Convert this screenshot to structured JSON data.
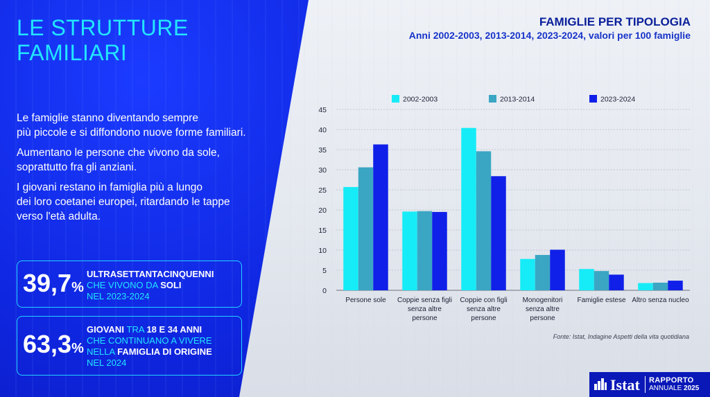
{
  "left": {
    "title_line1": "LE STRUTTURE",
    "title_line2": "FAMILIARI",
    "para1_line1": "Le famiglie stanno diventando sempre",
    "para1_line2": "più piccole e si diffondono nuove forme familiari.",
    "para2_line1": "Aumentano le persone che vivono da sole,",
    "para2_line2": "soprattutto fra gli anziani.",
    "para3_line1": "I giovani restano in famiglia più a lungo",
    "para3_line2": "dei loro coetanei europei, ritardando le tappe",
    "para3_line3": "verso l'età adulta.",
    "stat1": {
      "value": "39,7",
      "unit": "%",
      "l1": "ULTRASETTANTACINQUENNI",
      "l2a": "CHE VIVONO DA ",
      "l2b": "SOLI",
      "l3": "NEL 2023-2024"
    },
    "stat2": {
      "value": "63,3",
      "unit": "%",
      "l1a": "GIOVANI ",
      "l1b": "TRA ",
      "l1c": "18 E 34 ANNI",
      "l2": "CHE CONTINUANO A VIVERE",
      "l3a": "NELLA ",
      "l3b": "FAMIGLIA DI ORIGINE",
      "l4": "NEL 2024"
    }
  },
  "colors": {
    "s1": "#16ecf7",
    "s2": "#3aa6c4",
    "s3": "#1020e8",
    "axis_text": "#1a1f33",
    "grid": "#b8bcc6"
  },
  "chart_data": {
    "type": "bar",
    "title": "FAMIGLIE PER TIPOLOGIA",
    "subtitle": "Anni 2002-2003, 2013-2014, 2023-2024, valori per 100 famiglie",
    "categories": [
      [
        "Persone sole"
      ],
      [
        "Coppie senza figli",
        "senza altre",
        "persone"
      ],
      [
        "Coppie con figli",
        "senza altre",
        "persone"
      ],
      [
        "Monogenitori",
        "senza altre",
        "persone"
      ],
      [
        "Famiglie estese"
      ],
      [
        "Altro senza nucleo"
      ]
    ],
    "series": [
      {
        "name": "2002-2003",
        "values": [
          25.7,
          19.6,
          40.4,
          7.8,
          5.3,
          1.8
        ]
      },
      {
        "name": "2013-2014",
        "values": [
          30.6,
          19.7,
          34.6,
          8.8,
          4.8,
          1.9
        ]
      },
      {
        "name": "2023-2024",
        "values": [
          36.3,
          19.5,
          28.4,
          10.1,
          3.9,
          2.4
        ]
      }
    ],
    "ylim": [
      0,
      45
    ],
    "yticks": [
      "0",
      "5",
      "10",
      "15",
      "20",
      "25",
      "30",
      "35",
      "40",
      "45"
    ],
    "grid": true,
    "legend": "top"
  },
  "source": "Fonte: Istat, Indagine Aspetti della vita quotidiana",
  "logo": {
    "name": "Istat",
    "r1": "RAPPORTO",
    "r2a": "ANNUALE ",
    "r2b": "2025"
  }
}
